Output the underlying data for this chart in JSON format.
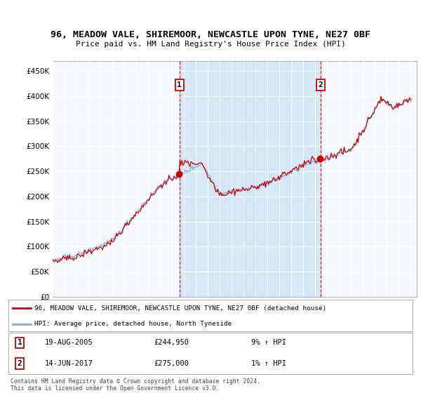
{
  "title_line1": "96, MEADOW VALE, SHIREMOOR, NEWCASTLE UPON TYNE, NE27 0BF",
  "title_line2": "Price paid vs. HM Land Registry's House Price Index (HPI)",
  "legend_line1": "96, MEADOW VALE, SHIREMOOR, NEWCASTLE UPON TYNE, NE27 0BF (detached house)",
  "legend_line2": "HPI: Average price, detached house, North Tyneside",
  "footnote": "Contains HM Land Registry data © Crown copyright and database right 2024.\nThis data is licensed under the Open Government Licence v3.0.",
  "transaction1_date": "19-AUG-2005",
  "transaction1_price": 244950,
  "transaction1_hpi": "9% ↑ HPI",
  "transaction2_date": "14-JUN-2017",
  "transaction2_price": 275000,
  "transaction2_hpi": "1% ↑ HPI",
  "red_color": "#cc0000",
  "blue_color": "#7bafd4",
  "shade_color": "#d0e4f7",
  "plot_bg_color": "#f0f4f8",
  "yticks": [
    0,
    50000,
    100000,
    150000,
    200000,
    250000,
    300000,
    350000,
    400000,
    450000
  ],
  "ylim": [
    0,
    470000
  ],
  "xlim_start": 1995.0,
  "xlim_end": 2025.5
}
